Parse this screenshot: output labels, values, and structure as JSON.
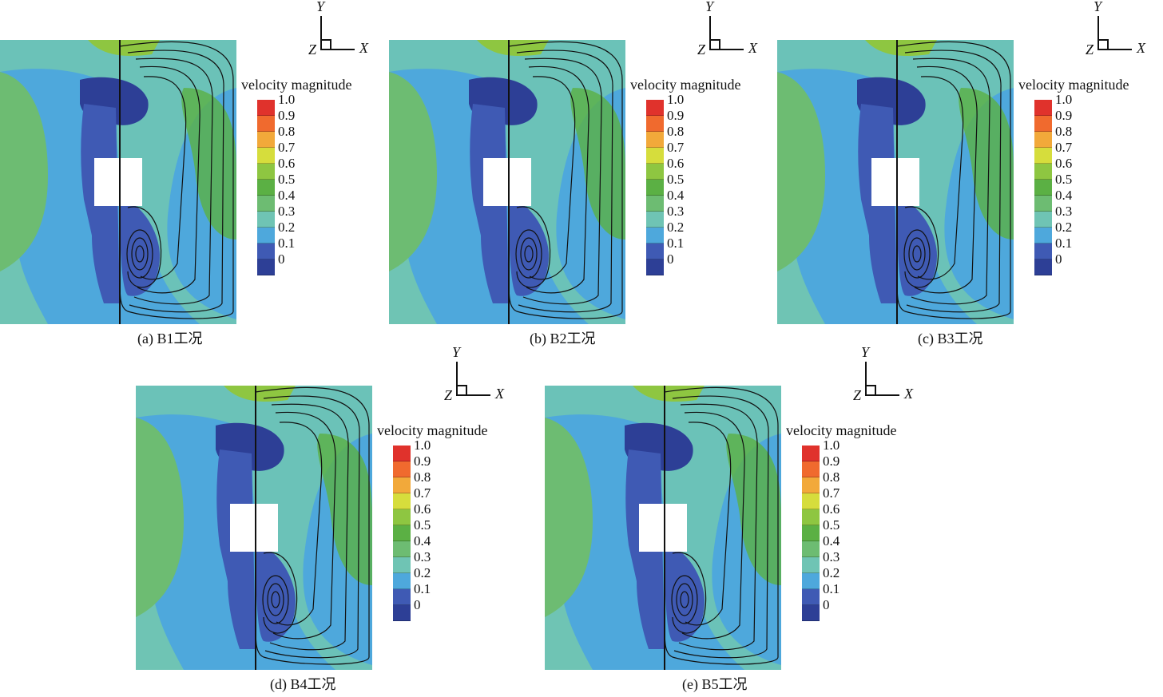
{
  "legend": {
    "title": "velocity magnitude",
    "ticks": [
      "1.0",
      "0.9",
      "0.8",
      "0.7",
      "0.6",
      "0.5",
      "0.4",
      "0.3",
      "0.2",
      "0.1",
      "0"
    ],
    "colors": [
      "#e0322c",
      "#f06a2e",
      "#f2a93a",
      "#d6dd3c",
      "#8ec641",
      "#5bb044",
      "#6dbc72",
      "#6fc4b4",
      "#4ea8dc",
      "#3f5ab4",
      "#2d3f96"
    ]
  },
  "axes": {
    "x": "X",
    "y": "Y",
    "z": "Z"
  },
  "panels": [
    {
      "caption": "(a) B1工况"
    },
    {
      "caption": "(b) B2工况"
    },
    {
      "caption": "(c) B3工况"
    },
    {
      "caption": "(d) B4工况"
    },
    {
      "caption": "(e) B5工况"
    }
  ]
}
